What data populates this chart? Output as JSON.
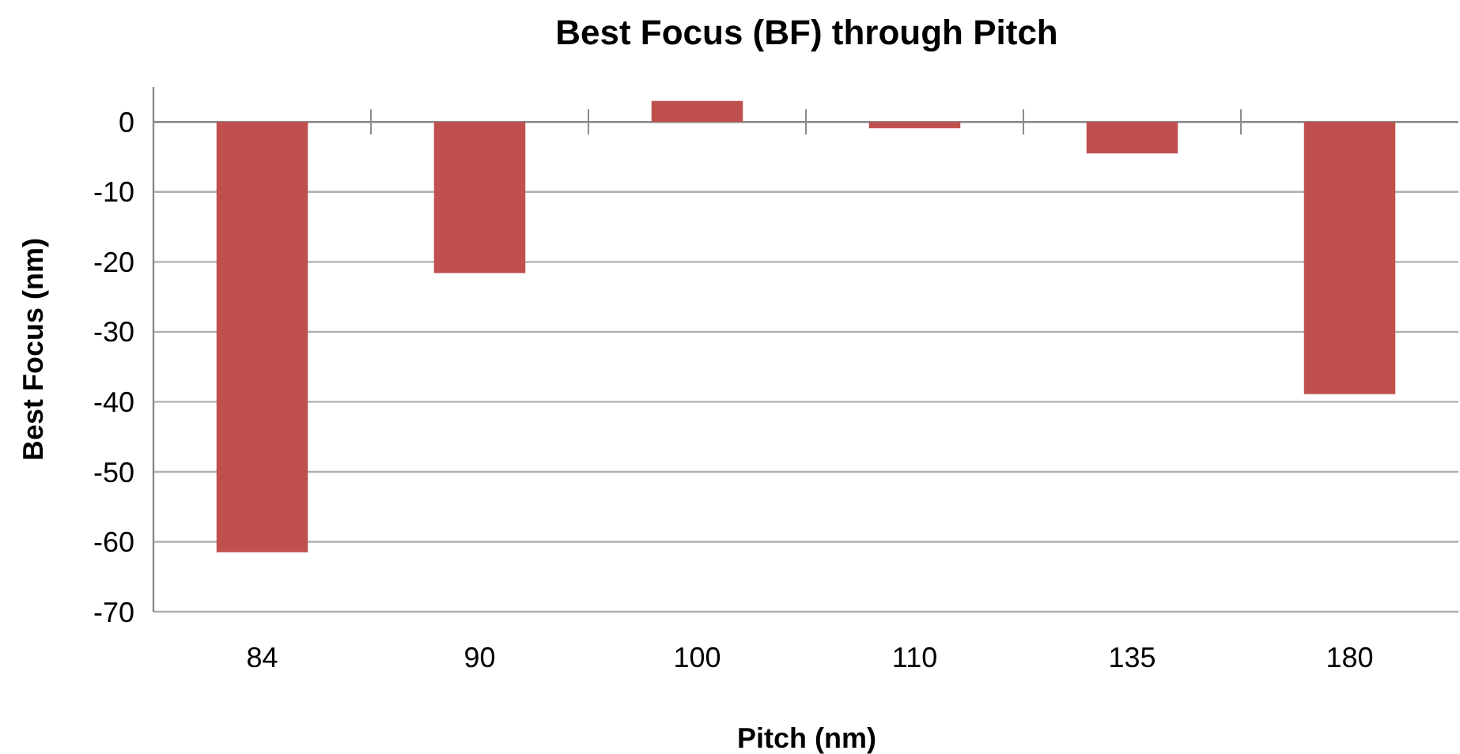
{
  "chart_data": {
    "type": "bar",
    "title": "Best Focus (BF) through Pitch",
    "xlabel": "Pitch (nm)",
    "ylabel": "Best Focus (nm)",
    "categories": [
      "84",
      "90",
      "100",
      "110",
      "135",
      "180"
    ],
    "values": [
      -61.5,
      -21.6,
      3.0,
      -0.9,
      -4.5,
      -38.9
    ],
    "color": "#c0504d",
    "ylim": [
      -70,
      5
    ],
    "yticks": [
      -70,
      -60,
      -50,
      -40,
      -30,
      -20,
      -10,
      0
    ],
    "grid": "y"
  }
}
